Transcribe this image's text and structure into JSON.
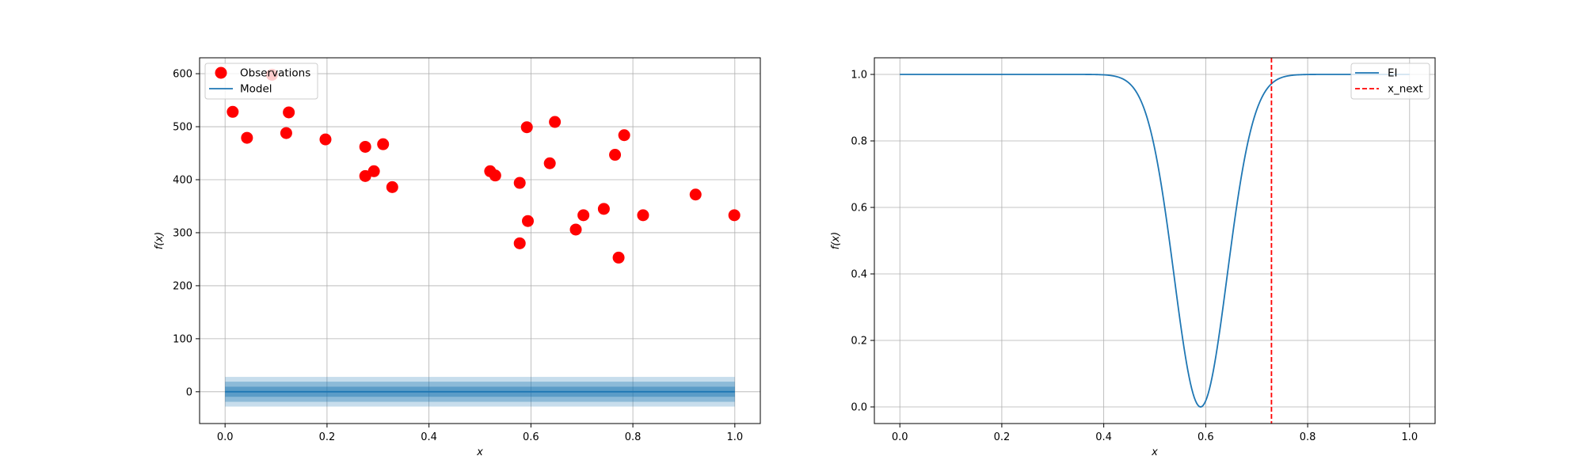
{
  "chart_data": [
    {
      "type": "scatter",
      "xlabel": "x",
      "ylabel": "f(x)",
      "xlim": [
        -0.05,
        1.05
      ],
      "ylim": [
        -60,
        630
      ],
      "xticks": [
        "0.0",
        "0.2",
        "0.4",
        "0.6",
        "0.8",
        "1.0"
      ],
      "xtick_values": [
        0,
        0.2,
        0.4,
        0.6,
        0.8,
        1.0
      ],
      "yticks": [
        "0",
        "100",
        "200",
        "300",
        "400",
        "500",
        "600"
      ],
      "ytick_values": [
        0,
        100,
        200,
        300,
        400,
        500,
        600
      ],
      "grid": true,
      "legend_position": "top-left",
      "series": [
        {
          "name": "Observations",
          "color": "#ff0000",
          "x": [
            0.015,
            0.043,
            0.092,
            0.12,
            0.125,
            0.197,
            0.275,
            0.275,
            0.292,
            0.31,
            0.328,
            0.52,
            0.53,
            0.578,
            0.578,
            0.592,
            0.594,
            0.637,
            0.647,
            0.688,
            0.703,
            0.743,
            0.765,
            0.772,
            0.783,
            0.82,
            0.923,
            0.999
          ],
          "y": [
            528,
            479,
            598,
            488,
            527,
            476,
            462,
            407,
            416,
            467,
            386,
            416,
            408,
            394,
            280,
            499,
            322,
            431,
            509,
            306,
            333,
            345,
            447,
            253,
            484,
            333,
            372,
            333
          ]
        },
        {
          "name": "Model",
          "color": "#1f77b4",
          "x": [
            0,
            1
          ],
          "y": [
            0,
            0
          ],
          "bands": [
            {
              "lower": -28,
              "upper": 28,
              "alpha": 0.25
            },
            {
              "lower": -19,
              "upper": 19,
              "alpha": 0.35
            },
            {
              "lower": -9.5,
              "upper": 9.5,
              "alpha": 0.45
            }
          ]
        }
      ]
    },
    {
      "type": "line",
      "xlabel": "x",
      "ylabel": "f(x)",
      "xlim": [
        -0.05,
        1.05
      ],
      "ylim": [
        -0.05,
        1.05
      ],
      "xticks": [
        "0.0",
        "0.2",
        "0.4",
        "0.6",
        "0.8",
        "1.0"
      ],
      "xtick_values": [
        0,
        0.2,
        0.4,
        0.6,
        0.8,
        1.0
      ],
      "yticks": [
        "0.0",
        "0.2",
        "0.4",
        "0.6",
        "0.8",
        "1.0"
      ],
      "ytick_values": [
        0,
        0.2,
        0.4,
        0.6,
        0.8,
        1.0
      ],
      "grid": true,
      "legend_position": "top-right",
      "series": [
        {
          "name": "EI",
          "color": "#1f77b4",
          "curve": {
            "formula": "1 - exp(-((x - mu)^2) / (2 * sigma^2))",
            "mu": 0.59,
            "sigma": 0.052,
            "samples": 400
          }
        },
        {
          "name": "x_next",
          "color": "#ff0000",
          "style": "dashed",
          "x": 0.729
        }
      ]
    }
  ]
}
